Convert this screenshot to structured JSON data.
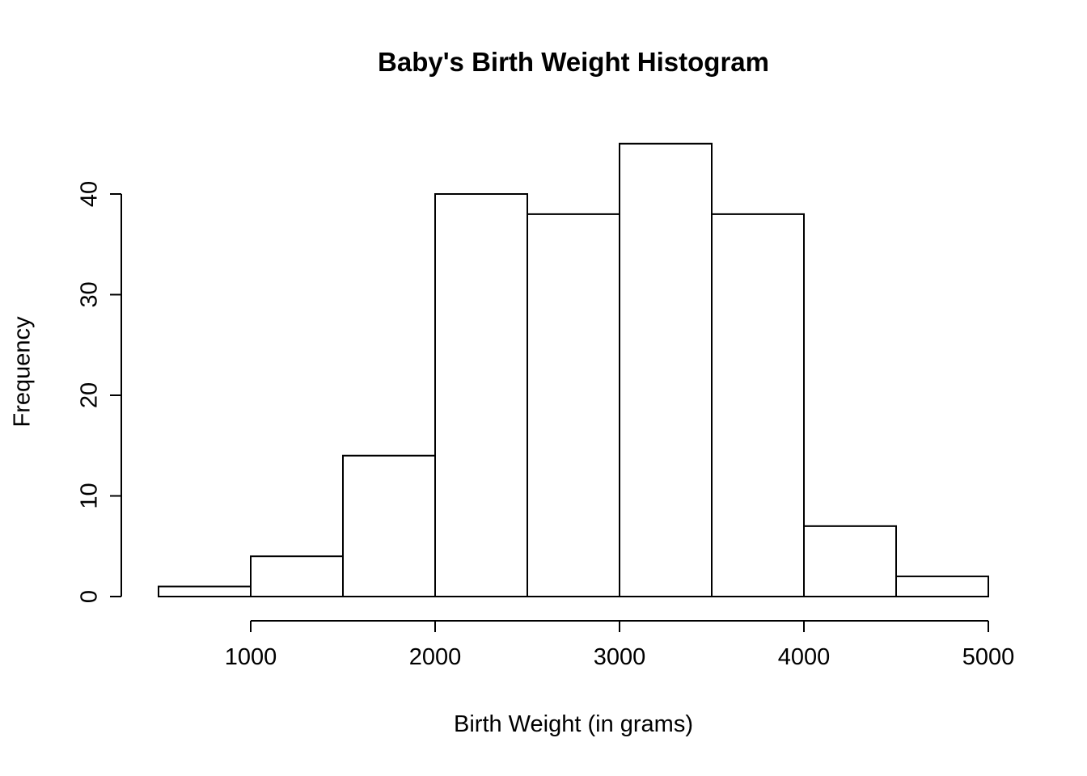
{
  "chart_data": {
    "type": "bar",
    "subtype": "histogram",
    "title": "Baby's Birth Weight Histogram",
    "xlabel": "Birth Weight (in grams)",
    "ylabel": "Frequency",
    "bin_width": 500,
    "bin_edges": [
      500,
      1000,
      1500,
      2000,
      2500,
      3000,
      3500,
      4000,
      4500,
      5000
    ],
    "values": [
      1,
      4,
      14,
      40,
      38,
      45,
      38,
      7,
      2
    ],
    "x_ticks": [
      1000,
      2000,
      3000,
      4000,
      5000
    ],
    "y_ticks": [
      0,
      10,
      20,
      30,
      40
    ],
    "xlim": [
      500,
      5000
    ],
    "ylim": [
      0,
      45
    ],
    "bar_fill": "#ffffff",
    "bar_stroke": "#000000",
    "axis_color": "#000000",
    "grid": false,
    "legend": false
  }
}
